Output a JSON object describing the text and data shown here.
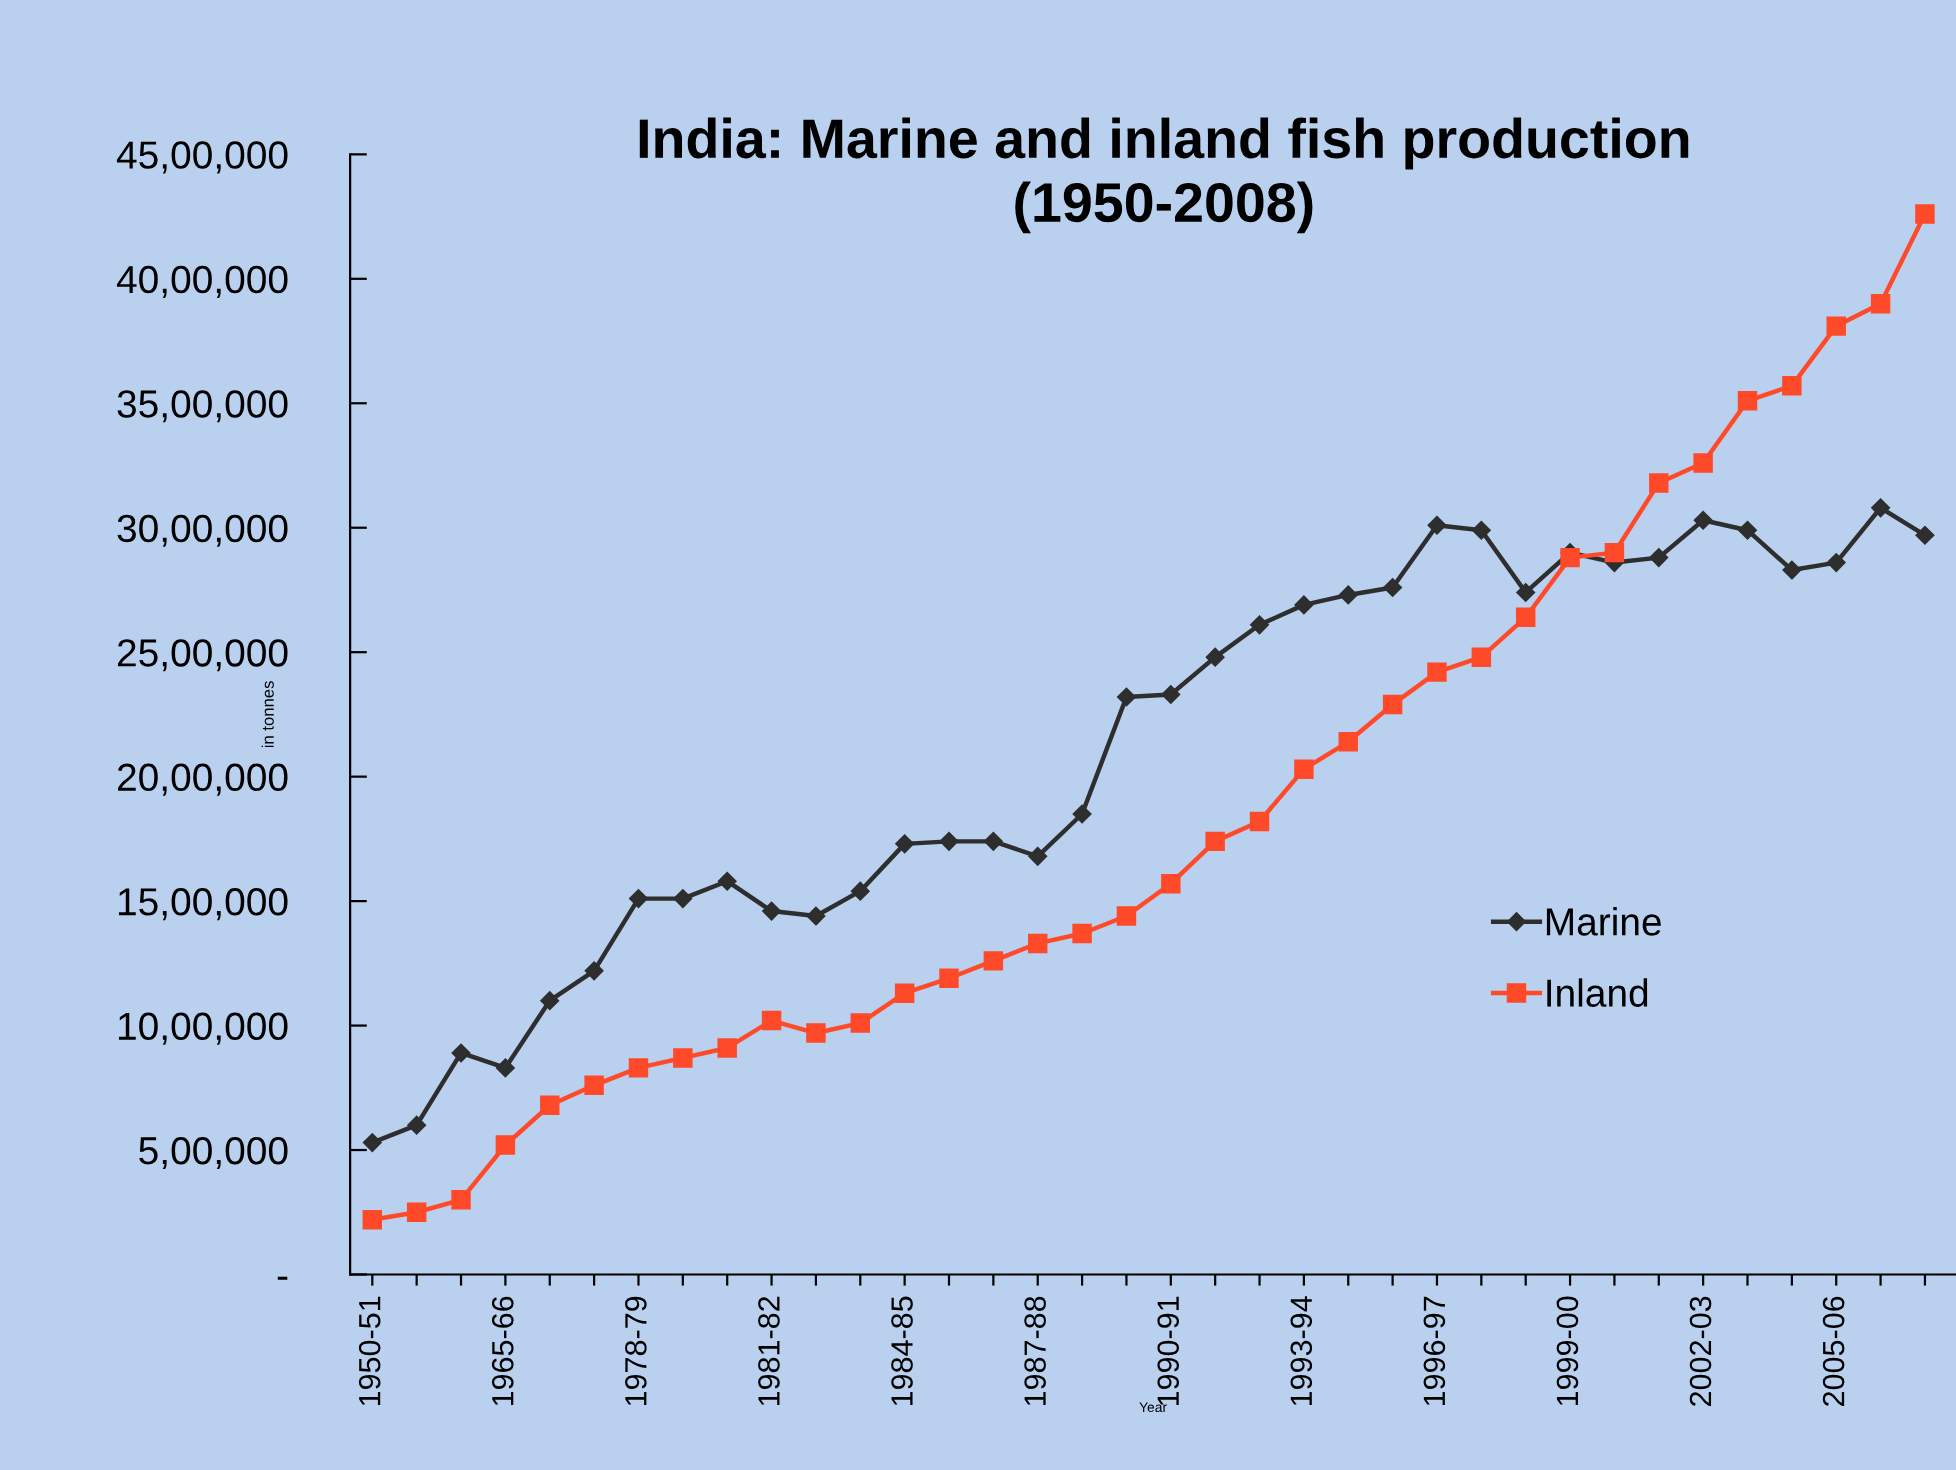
{
  "chart_data": {
    "type": "line",
    "title": "India: Marine and inland fish production\n(1950-2008)",
    "xlabel": "Year",
    "ylabel": "in tonnes",
    "categories": [
      "1950-51",
      null,
      null,
      "1965-66",
      null,
      null,
      "1978-79",
      null,
      null,
      "1981-82",
      null,
      null,
      "1984-85",
      null,
      null,
      "1987-88",
      null,
      null,
      "1990-91",
      null,
      null,
      "1993-94",
      null,
      null,
      "1996-97",
      null,
      null,
      "1999-00",
      null,
      null,
      "2002-03",
      null,
      null,
      "2005-06",
      null,
      null
    ],
    "series": [
      {
        "name": "Marine",
        "color": "#2e2e2e",
        "marker": "diamond",
        "values": [
          530000,
          600000,
          890000,
          830000,
          1100000,
          1220000,
          1510000,
          1510000,
          1580000,
          1460000,
          1440000,
          1540000,
          1730000,
          1740000,
          1740000,
          1680000,
          1850000,
          2320000,
          2330000,
          2480000,
          2610000,
          2690000,
          2730000,
          2760000,
          3010000,
          2990000,
          2740000,
          2900000,
          2860000,
          2880000,
          3030000,
          2990000,
          2830000,
          2860000,
          3080000,
          2970000
        ]
      },
      {
        "name": "Inland",
        "color": "#ff4a2a",
        "marker": "square",
        "values": [
          220000,
          250000,
          300000,
          520000,
          680000,
          760000,
          830000,
          870000,
          910000,
          1020000,
          970000,
          1010000,
          1130000,
          1190000,
          1260000,
          1330000,
          1370000,
          1440000,
          1570000,
          1740000,
          1820000,
          2030000,
          2140000,
          2290000,
          2420000,
          2480000,
          2640000,
          2880000,
          2900000,
          3180000,
          3260000,
          3510000,
          3570000,
          3810000,
          3900000,
          4260000
        ]
      }
    ],
    "ylim": [
      0,
      4500000
    ],
    "yticks": [
      {
        "value": 0,
        "label": "-"
      },
      {
        "value": 500000,
        "label": "5,00,000"
      },
      {
        "value": 1000000,
        "label": "10,00,000"
      },
      {
        "value": 1500000,
        "label": "15,00,000"
      },
      {
        "value": 2000000,
        "label": "20,00,000"
      },
      {
        "value": 2500000,
        "label": "25,00,000"
      },
      {
        "value": 3000000,
        "label": "30,00,000"
      },
      {
        "value": 3500000,
        "label": "35,00,000"
      },
      {
        "value": 4000000,
        "label": "40,00,000"
      },
      {
        "value": 4500000,
        "label": "45,00,000"
      }
    ],
    "grid": false,
    "legend": "right",
    "line_style": "solid"
  }
}
